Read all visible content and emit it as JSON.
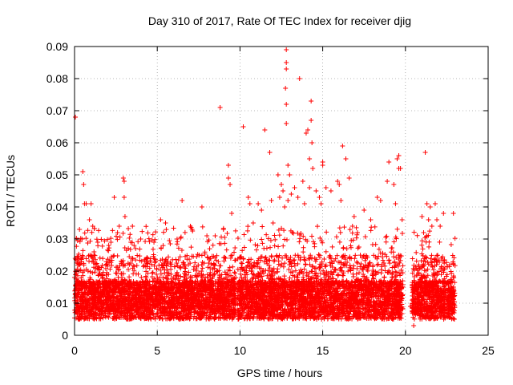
{
  "chart_data": {
    "type": "scatter",
    "title": "Day 310 of 2017, Rate Of TEC Index for receiver djig",
    "xlabel": "GPS time / hours",
    "ylabel": "ROTI / TECUs",
    "xlim": [
      0,
      25
    ],
    "ylim": [
      0,
      0.09
    ],
    "xticks": [
      0,
      5,
      10,
      15,
      20,
      25
    ],
    "xtick_labels": [
      "0",
      "5",
      "10",
      "15",
      "20",
      "25"
    ],
    "yticks": [
      0,
      0.01,
      0.02,
      0.03,
      0.04,
      0.05,
      0.06,
      0.07,
      0.08,
      0.09
    ],
    "ytick_labels": [
      "0",
      "0.01",
      "0.02",
      "0.03",
      "0.04",
      "0.05",
      "0.06",
      "0.07",
      "0.08",
      "0.09"
    ],
    "grid": true,
    "marker": "+",
    "color": "#ff0000",
    "dense_ranges_hours": [
      [
        0.0,
        9.75
      ],
      [
        9.85,
        19.85
      ],
      [
        20.4,
        23.0
      ]
    ],
    "series": [
      {
        "name": "ROTI",
        "points": [
          [
            0.05,
            0.068
          ],
          [
            0.3,
            0.033
          ],
          [
            0.5,
            0.051
          ],
          [
            0.55,
            0.047
          ],
          [
            0.6,
            0.041
          ],
          [
            0.7,
            0.041
          ],
          [
            0.9,
            0.036
          ],
          [
            1.0,
            0.041
          ],
          [
            1.1,
            0.034
          ],
          [
            1.4,
            0.029
          ],
          [
            2.2,
            0.029
          ],
          [
            2.4,
            0.043
          ],
          [
            2.7,
            0.034
          ],
          [
            2.95,
            0.049
          ],
          [
            3.0,
            0.048
          ],
          [
            3.0,
            0.043
          ],
          [
            3.05,
            0.037
          ],
          [
            3.4,
            0.029
          ],
          [
            3.5,
            0.034
          ],
          [
            4.0,
            0.03
          ],
          [
            4.8,
            0.029
          ],
          [
            5.2,
            0.036
          ],
          [
            5.5,
            0.035
          ],
          [
            6.2,
            0.03
          ],
          [
            6.5,
            0.042
          ],
          [
            7.0,
            0.034
          ],
          [
            7.7,
            0.04
          ],
          [
            8.0,
            0.031
          ],
          [
            8.5,
            0.031
          ],
          [
            8.8,
            0.071
          ],
          [
            9.0,
            0.033
          ],
          [
            9.3,
            0.053
          ],
          [
            9.3,
            0.049
          ],
          [
            9.4,
            0.047
          ],
          [
            9.5,
            0.038
          ],
          [
            10.2,
            0.065
          ],
          [
            10.5,
            0.043
          ],
          [
            10.6,
            0.041
          ],
          [
            10.8,
            0.035
          ],
          [
            11.1,
            0.041
          ],
          [
            11.3,
            0.039
          ],
          [
            11.5,
            0.064
          ],
          [
            11.8,
            0.057
          ],
          [
            11.9,
            0.042
          ],
          [
            12.0,
            0.035
          ],
          [
            12.3,
            0.05
          ],
          [
            12.4,
            0.043
          ],
          [
            12.5,
            0.047
          ],
          [
            12.6,
            0.045
          ],
          [
            12.7,
            0.04
          ],
          [
            12.8,
            0.089
          ],
          [
            12.8,
            0.085
          ],
          [
            12.8,
            0.083
          ],
          [
            12.75,
            0.077
          ],
          [
            12.8,
            0.072
          ],
          [
            12.8,
            0.066
          ],
          [
            12.9,
            0.053
          ],
          [
            12.9,
            0.042
          ],
          [
            13.0,
            0.05
          ],
          [
            13.1,
            0.044
          ],
          [
            13.3,
            0.046
          ],
          [
            13.5,
            0.043
          ],
          [
            13.6,
            0.08
          ],
          [
            13.8,
            0.048
          ],
          [
            13.9,
            0.041
          ],
          [
            14.0,
            0.063
          ],
          [
            14.1,
            0.064
          ],
          [
            14.2,
            0.055
          ],
          [
            14.2,
            0.046
          ],
          [
            14.3,
            0.073
          ],
          [
            14.3,
            0.067
          ],
          [
            14.35,
            0.06
          ],
          [
            14.4,
            0.052
          ],
          [
            14.6,
            0.045
          ],
          [
            14.8,
            0.043
          ],
          [
            14.9,
            0.041
          ],
          [
            15.0,
            0.054
          ],
          [
            15.0,
            0.053
          ],
          [
            15.2,
            0.046
          ],
          [
            15.5,
            0.045
          ],
          [
            15.9,
            0.048
          ],
          [
            16.0,
            0.047
          ],
          [
            16.1,
            0.042
          ],
          [
            16.2,
            0.059
          ],
          [
            16.4,
            0.055
          ],
          [
            16.6,
            0.049
          ],
          [
            16.8,
            0.034
          ],
          [
            16.9,
            0.037
          ],
          [
            17.1,
            0.032
          ],
          [
            17.5,
            0.039
          ],
          [
            17.9,
            0.036
          ],
          [
            18.3,
            0.043
          ],
          [
            18.5,
            0.042
          ],
          [
            18.9,
            0.048
          ],
          [
            19.0,
            0.054
          ],
          [
            19.3,
            0.047
          ],
          [
            19.4,
            0.041
          ],
          [
            19.5,
            0.055
          ],
          [
            19.6,
            0.056
          ],
          [
            19.6,
            0.052
          ],
          [
            19.7,
            0.052
          ],
          [
            19.8,
            0.036
          ],
          [
            20.3,
            0.009
          ],
          [
            20.5,
            0.003
          ],
          [
            20.6,
            0.008
          ],
          [
            21.0,
            0.037
          ],
          [
            21.1,
            0.032
          ],
          [
            21.2,
            0.057
          ],
          [
            21.3,
            0.041
          ],
          [
            21.4,
            0.036
          ],
          [
            21.5,
            0.04
          ],
          [
            21.6,
            0.034
          ],
          [
            21.8,
            0.041
          ],
          [
            21.9,
            0.036
          ],
          [
            22.1,
            0.034
          ],
          [
            22.3,
            0.038
          ],
          [
            22.9,
            0.038
          ]
        ]
      }
    ]
  }
}
